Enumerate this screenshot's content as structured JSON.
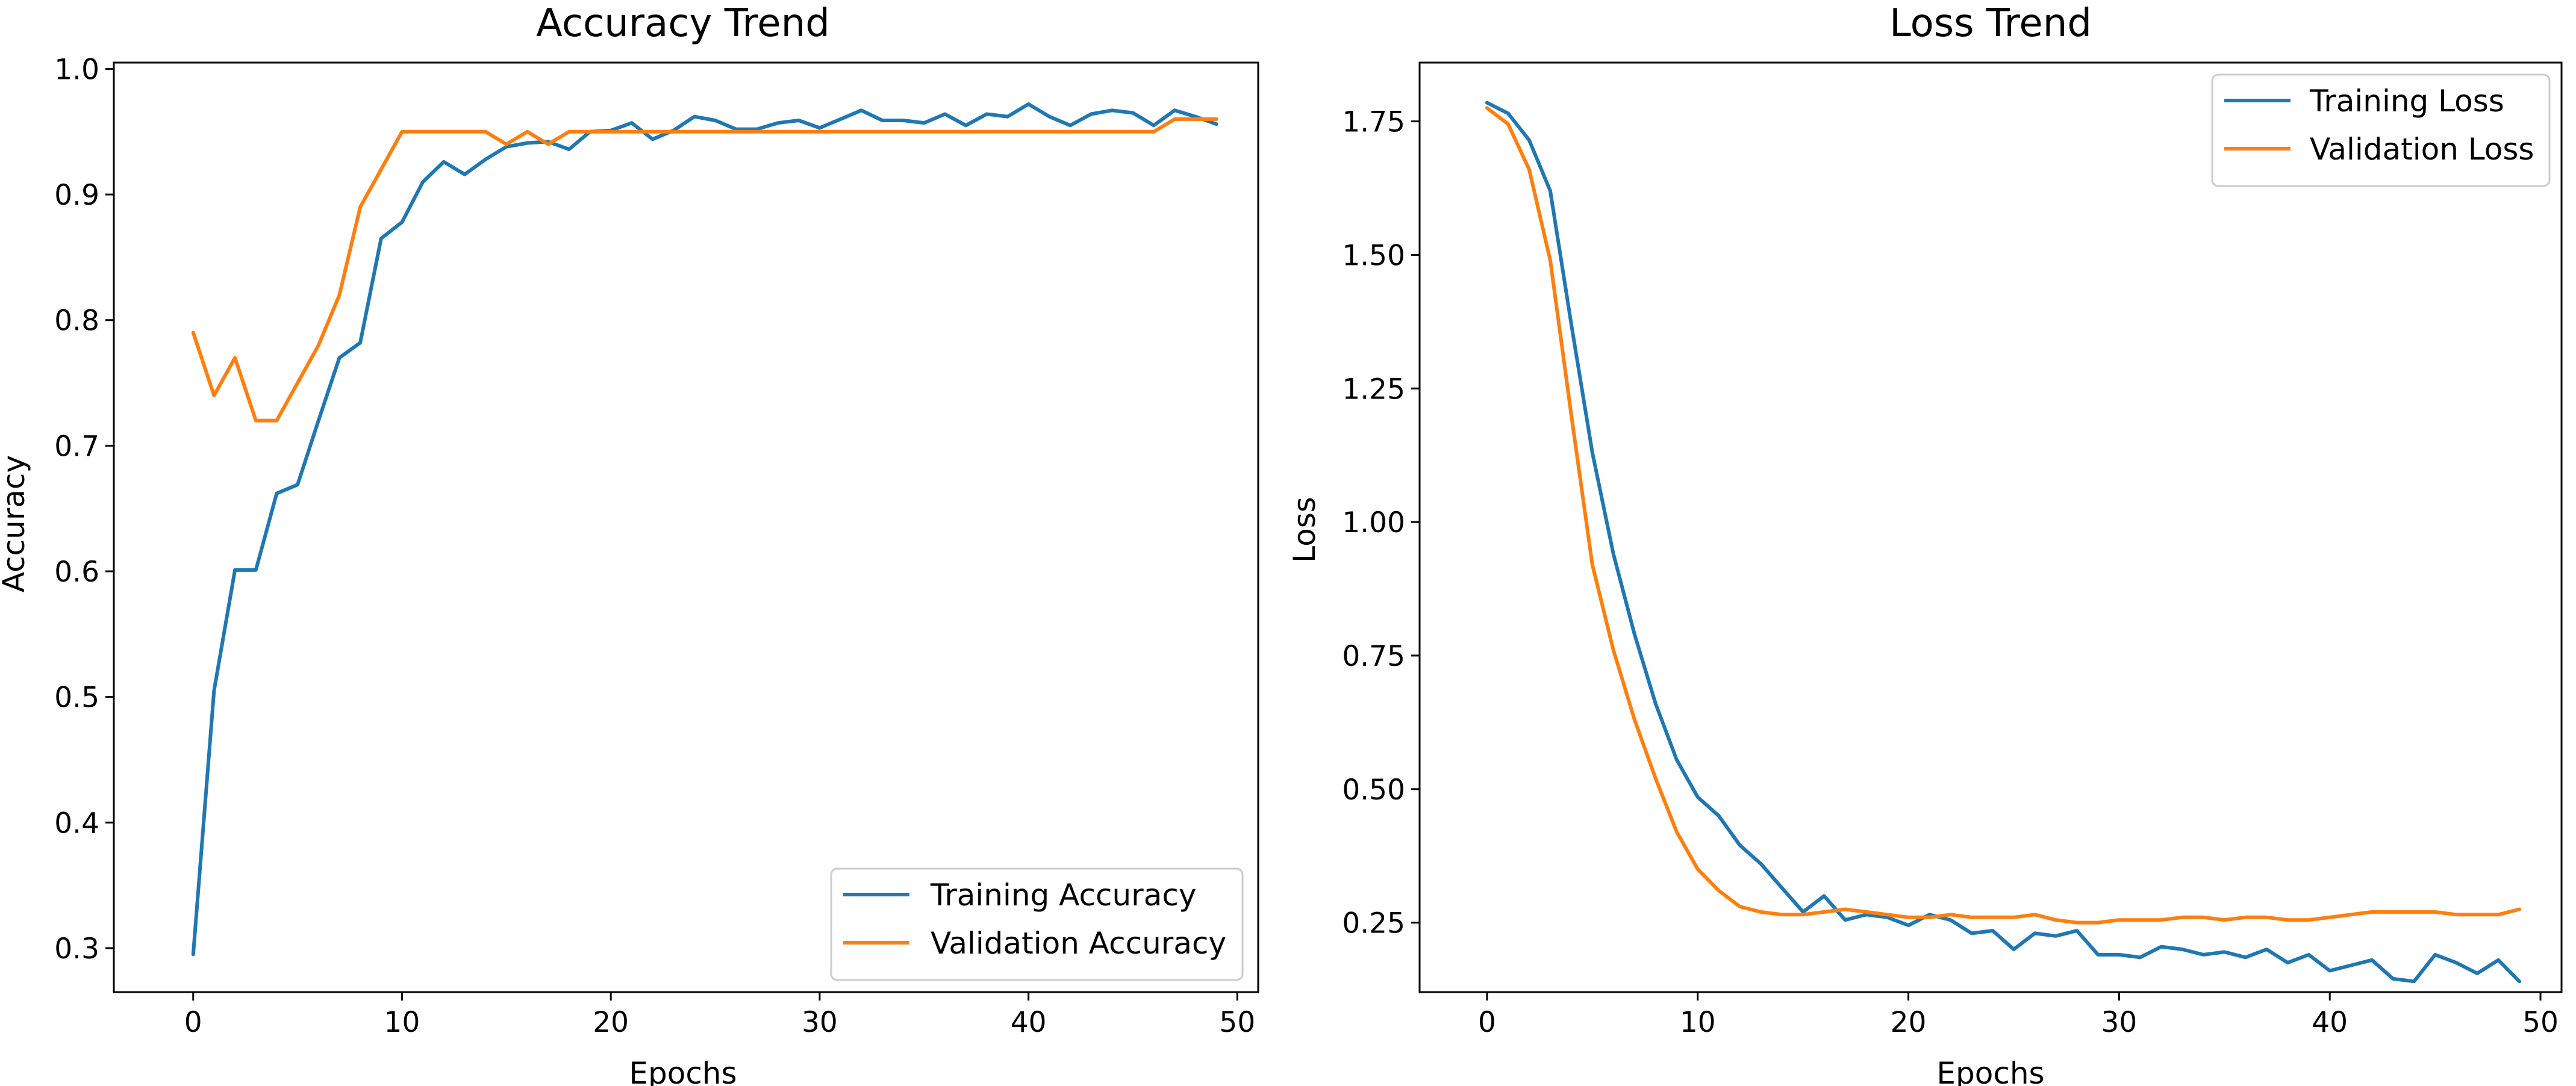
{
  "colors": {
    "training": "#1f77b4",
    "validation": "#ff7f0e"
  },
  "chart_data": [
    {
      "type": "line",
      "title": "Accuracy Trend",
      "xlabel": "Epochs",
      "ylabel": "Accuracy",
      "xlim": [
        -3.8,
        51
      ],
      "ylim": [
        0.265,
        1.005
      ],
      "xticks": [
        0,
        10,
        20,
        30,
        40,
        50
      ],
      "yticks": [
        0.3,
        0.4,
        0.5,
        0.6,
        0.7,
        0.8,
        0.9,
        1.0
      ],
      "xtick_labels": [
        "0",
        "10",
        "20",
        "30",
        "40",
        "50"
      ],
      "ytick_labels": [
        "0.3",
        "0.4",
        "0.5",
        "0.6",
        "0.7",
        "0.8",
        "0.9",
        "1.0"
      ],
      "grid": false,
      "legend_position": "lower right",
      "series": [
        {
          "name": "Training Accuracy",
          "color_key": "training",
          "x": [
            0,
            1,
            2,
            3,
            4,
            5,
            6,
            7,
            8,
            9,
            10,
            11,
            12,
            13,
            14,
            15,
            16,
            17,
            18,
            19,
            20,
            21,
            22,
            23,
            24,
            25,
            26,
            27,
            28,
            29,
            30,
            31,
            32,
            33,
            34,
            35,
            36,
            37,
            38,
            39,
            40,
            41,
            42,
            43,
            44,
            45,
            46,
            47,
            48,
            49
          ],
          "values": [
            0.295,
            0.505,
            0.601,
            0.601,
            0.662,
            0.669,
            0.72,
            0.77,
            0.782,
            0.865,
            0.878,
            0.91,
            0.926,
            0.916,
            0.928,
            0.938,
            0.941,
            0.942,
            0.936,
            0.95,
            0.951,
            0.957,
            0.944,
            0.951,
            0.962,
            0.959,
            0.952,
            0.952,
            0.957,
            0.959,
            0.953,
            0.96,
            0.967,
            0.959,
            0.959,
            0.957,
            0.964,
            0.955,
            0.964,
            0.962,
            0.972,
            0.962,
            0.955,
            0.964,
            0.967,
            0.965,
            0.955,
            0.967,
            0.962,
            0.956
          ]
        },
        {
          "name": "Validation Accuracy",
          "color_key": "validation",
          "x": [
            0,
            1,
            2,
            3,
            4,
            5,
            6,
            7,
            8,
            9,
            10,
            11,
            12,
            13,
            14,
            15,
            16,
            17,
            18,
            19,
            20,
            21,
            22,
            23,
            24,
            25,
            26,
            27,
            28,
            29,
            30,
            31,
            32,
            33,
            34,
            35,
            36,
            37,
            38,
            39,
            40,
            41,
            42,
            43,
            44,
            45,
            46,
            47,
            48,
            49
          ],
          "values": [
            0.79,
            0.74,
            0.77,
            0.72,
            0.72,
            0.75,
            0.78,
            0.82,
            0.89,
            0.92,
            0.95,
            0.95,
            0.95,
            0.95,
            0.95,
            0.94,
            0.95,
            0.94,
            0.95,
            0.95,
            0.95,
            0.95,
            0.95,
            0.95,
            0.95,
            0.95,
            0.95,
            0.95,
            0.95,
            0.95,
            0.95,
            0.95,
            0.95,
            0.95,
            0.95,
            0.95,
            0.95,
            0.95,
            0.95,
            0.95,
            0.95,
            0.95,
            0.95,
            0.95,
            0.95,
            0.95,
            0.95,
            0.96,
            0.96,
            0.96
          ]
        }
      ]
    },
    {
      "type": "line",
      "title": "Loss Trend",
      "xlabel": "Epochs",
      "ylabel": "Loss",
      "xlim": [
        -3.2,
        51
      ],
      "ylim": [
        0.12,
        1.86
      ],
      "xticks": [
        0,
        10,
        20,
        30,
        40,
        50
      ],
      "yticks": [
        0.25,
        0.5,
        0.75,
        1.0,
        1.25,
        1.5,
        1.75
      ],
      "xtick_labels": [
        "0",
        "10",
        "20",
        "30",
        "40",
        "50"
      ],
      "ytick_labels": [
        "0.25",
        "0.50",
        "0.75",
        "1.00",
        "1.25",
        "1.50",
        "1.75"
      ],
      "grid": false,
      "legend_position": "upper right",
      "series": [
        {
          "name": "Training Loss",
          "color_key": "training",
          "x": [
            0,
            1,
            2,
            3,
            4,
            5,
            6,
            7,
            8,
            9,
            10,
            11,
            12,
            13,
            14,
            15,
            16,
            17,
            18,
            19,
            20,
            21,
            22,
            23,
            24,
            25,
            26,
            27,
            28,
            29,
            30,
            31,
            32,
            33,
            34,
            35,
            36,
            37,
            38,
            39,
            40,
            41,
            42,
            43,
            44,
            45,
            46,
            47,
            48,
            49
          ],
          "values": [
            1.785,
            1.765,
            1.715,
            1.62,
            1.37,
            1.13,
            0.94,
            0.79,
            0.66,
            0.555,
            0.485,
            0.45,
            0.395,
            0.36,
            0.315,
            0.27,
            0.3,
            0.255,
            0.265,
            0.26,
            0.245,
            0.265,
            0.255,
            0.23,
            0.235,
            0.2,
            0.23,
            0.225,
            0.235,
            0.19,
            0.19,
            0.185,
            0.205,
            0.2,
            0.19,
            0.195,
            0.185,
            0.2,
            0.175,
            0.19,
            0.16,
            0.17,
            0.18,
            0.145,
            0.14,
            0.19,
            0.175,
            0.155,
            0.18,
            0.14
          ]
        },
        {
          "name": "Validation Loss",
          "color_key": "validation",
          "x": [
            0,
            1,
            2,
            3,
            4,
            5,
            6,
            7,
            8,
            9,
            10,
            11,
            12,
            13,
            14,
            15,
            16,
            17,
            18,
            19,
            20,
            21,
            22,
            23,
            24,
            25,
            26,
            27,
            28,
            29,
            30,
            31,
            32,
            33,
            34,
            35,
            36,
            37,
            38,
            39,
            40,
            41,
            42,
            43,
            44,
            45,
            46,
            47,
            48,
            49
          ],
          "values": [
            1.775,
            1.745,
            1.66,
            1.49,
            1.2,
            0.92,
            0.76,
            0.63,
            0.52,
            0.42,
            0.35,
            0.31,
            0.28,
            0.27,
            0.265,
            0.265,
            0.27,
            0.275,
            0.27,
            0.265,
            0.26,
            0.26,
            0.265,
            0.26,
            0.26,
            0.26,
            0.265,
            0.255,
            0.25,
            0.25,
            0.255,
            0.255,
            0.255,
            0.26,
            0.26,
            0.255,
            0.26,
            0.26,
            0.255,
            0.255,
            0.26,
            0.265,
            0.27,
            0.27,
            0.27,
            0.27,
            0.265,
            0.265,
            0.265,
            0.275
          ]
        }
      ]
    }
  ]
}
